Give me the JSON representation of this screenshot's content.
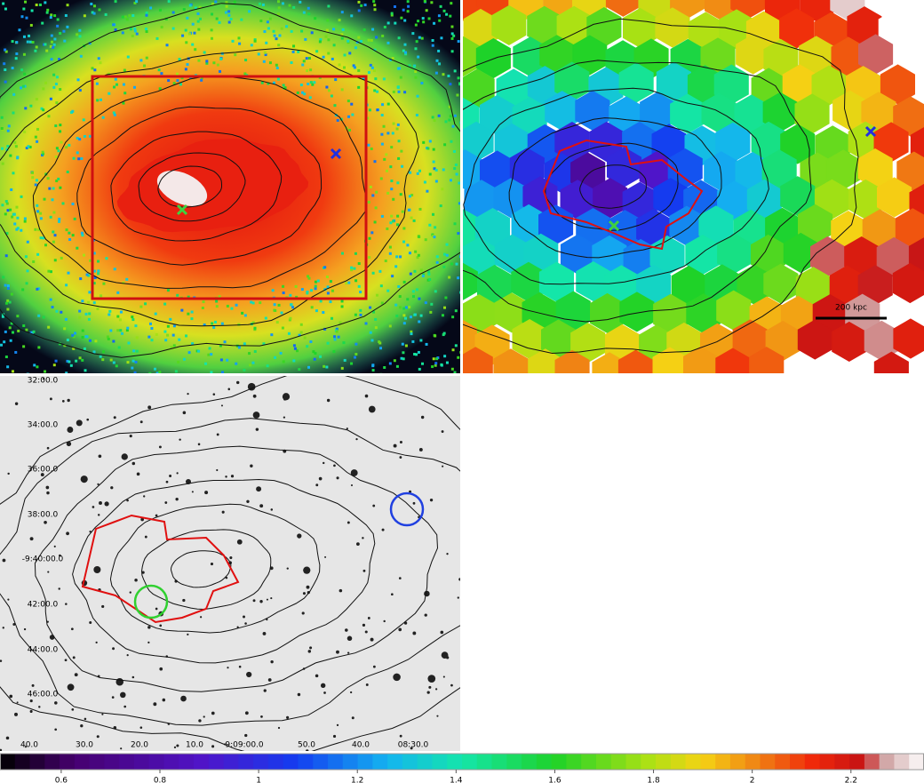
{
  "panels": {
    "temperature": {
      "scale_bar": "200 kpc"
    },
    "optical": {
      "dec_labels": [
        "32:00.0",
        "34:00.0",
        "36:00.0",
        "38:00.0",
        "-9:40:00.0",
        "42:00.0",
        "44:00.0",
        "46:00.0"
      ],
      "ra_labels": [
        "40.0",
        "30.0",
        "20.0",
        "10.0",
        "9:09:00.0",
        "50.0",
        "40.0",
        "08:30.0"
      ]
    }
  },
  "colorbar": {
    "range": [
      0.476,
      2.348
    ],
    "ticks": [
      0.6,
      0.8,
      1,
      1.2,
      1.4,
      1.6,
      1.8,
      2,
      2.2
    ]
  }
}
